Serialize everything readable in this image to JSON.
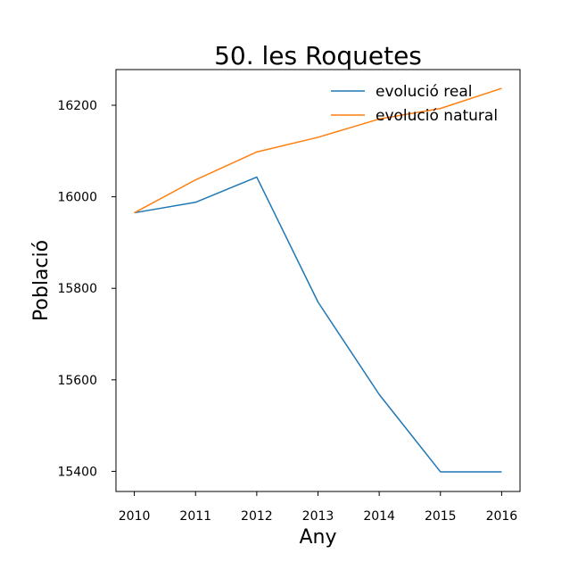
{
  "chart_data": {
    "type": "line",
    "title": "50. les Roquetes",
    "xlabel": "Any",
    "ylabel": "Població",
    "x": [
      2010,
      2011,
      2012,
      2013,
      2014,
      2015,
      2016
    ],
    "x_tick_labels": [
      "2010",
      "2011",
      "2012",
      "2013",
      "2014",
      "2015",
      "2016"
    ],
    "y_ticks": [
      15400,
      15600,
      15800,
      16000,
      16200
    ],
    "y_tick_labels": [
      "15400",
      "15600",
      "15800",
      "16000",
      "16200"
    ],
    "xlim": [
      2009.7,
      2016.3
    ],
    "ylim": [
      15356,
      16278
    ],
    "grid": false,
    "legend_position": "top-right",
    "series": [
      {
        "name": "evolució real",
        "color": "#1f77b4",
        "values": [
          15965,
          15988,
          16043,
          15770,
          15568,
          15399,
          15399
        ]
      },
      {
        "name": "evolució natural",
        "color": "#ff7f0e",
        "values": [
          15965,
          16037,
          16098,
          16130,
          16170,
          16193,
          16237
        ]
      }
    ]
  }
}
